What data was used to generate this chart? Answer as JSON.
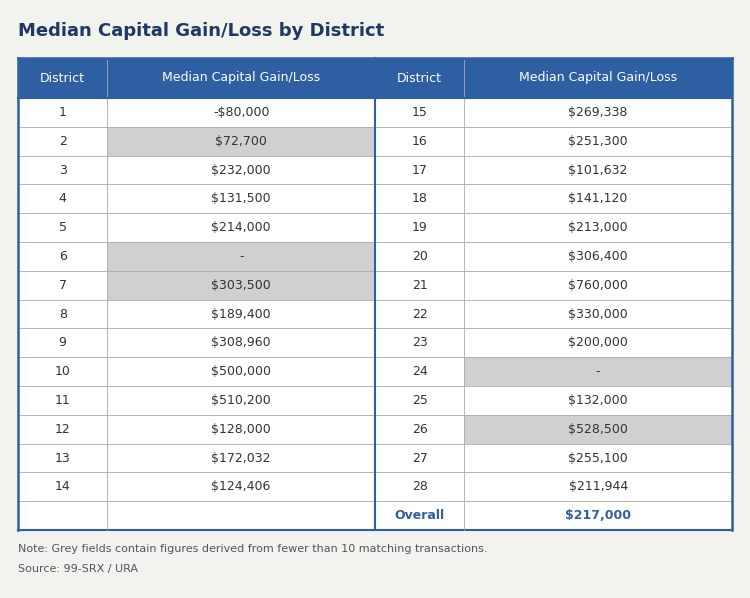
{
  "title": "Median Capital Gain/Loss by District",
  "title_color": "#1f3864",
  "background_color": "#f2f2ee",
  "header_bg": "#2e5fa3",
  "header_text_color": "#ffffff",
  "row_bg_white": "#ffffff",
  "row_bg_grey": "#d0d0d0",
  "border_color": "#2e5fa3",
  "grid_color": "#aaaaaa",
  "overall_text_color": "#2e5fa3",
  "note_text": "Note: Grey fields contain figures derived from fewer than 10 matching transactions.",
  "source_text": "Source: 99-SRX / URA",
  "col_headers": [
    "District",
    "Median Capital Gain/Loss",
    "District",
    "Median Capital Gain/Loss"
  ],
  "left_data": [
    [
      "1",
      "-$80,000",
      false
    ],
    [
      "2",
      "$72,700",
      true
    ],
    [
      "3",
      "$232,000",
      false
    ],
    [
      "4",
      "$131,500",
      false
    ],
    [
      "5",
      "$214,000",
      false
    ],
    [
      "6",
      "-",
      true
    ],
    [
      "7",
      "$303,500",
      true
    ],
    [
      "8",
      "$189,400",
      false
    ],
    [
      "9",
      "$308,960",
      false
    ],
    [
      "10",
      "$500,000",
      false
    ],
    [
      "11",
      "$510,200",
      false
    ],
    [
      "12",
      "$128,000",
      false
    ],
    [
      "13",
      "$172,032",
      false
    ],
    [
      "14",
      "$124,406",
      false
    ]
  ],
  "right_data": [
    [
      "15",
      "$269,338",
      false
    ],
    [
      "16",
      "$251,300",
      false
    ],
    [
      "17",
      "$101,632",
      false
    ],
    [
      "18",
      "$141,120",
      false
    ],
    [
      "19",
      "$213,000",
      false
    ],
    [
      "20",
      "$306,400",
      false
    ],
    [
      "21",
      "$760,000",
      false
    ],
    [
      "22",
      "$330,000",
      false
    ],
    [
      "23",
      "$200,000",
      false
    ],
    [
      "24",
      "-",
      true
    ],
    [
      "25",
      "$132,000",
      false
    ],
    [
      "26",
      "$528,500",
      true
    ],
    [
      "27",
      "$255,100",
      false
    ],
    [
      "28",
      "$211,944",
      false
    ]
  ],
  "overall_label": "Overall",
  "overall_value": "$217,000",
  "title_fontsize": 13,
  "header_fontsize": 9,
  "data_fontsize": 9,
  "note_fontsize": 8,
  "col_props": [
    0.125,
    0.375,
    0.125,
    0.375
  ]
}
